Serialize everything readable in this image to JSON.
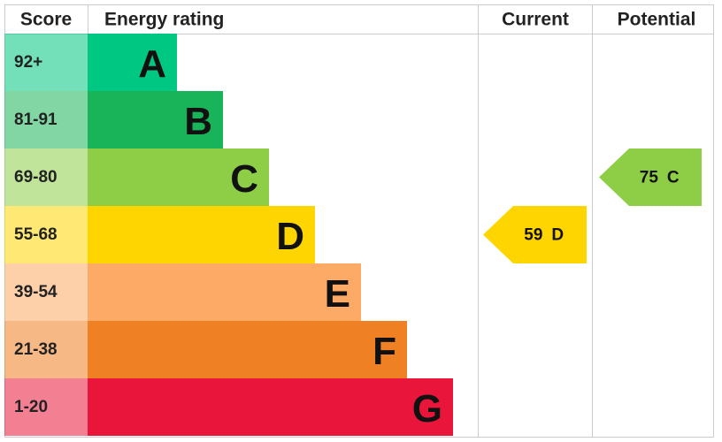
{
  "header": {
    "score": "Score",
    "rating": "Energy rating",
    "current": "Current",
    "potential": "Potential"
  },
  "bands": [
    {
      "score": "92+",
      "letter": "A",
      "color": "#00c781"
    },
    {
      "score": "81-91",
      "letter": "B",
      "color": "#19b459"
    },
    {
      "score": "69-80",
      "letter": "C",
      "color": "#8dce46"
    },
    {
      "score": "55-68",
      "letter": "D",
      "color": "#ffd500"
    },
    {
      "score": "39-54",
      "letter": "E",
      "color": "#fcaa65"
    },
    {
      "score": "21-38",
      "letter": "F",
      "color": "#ef8023"
    },
    {
      "score": "1-20",
      "letter": "G",
      "color": "#e9153b"
    }
  ],
  "current": {
    "score": 59,
    "band": "D"
  },
  "potential": {
    "score": 75,
    "band": "C"
  }
}
